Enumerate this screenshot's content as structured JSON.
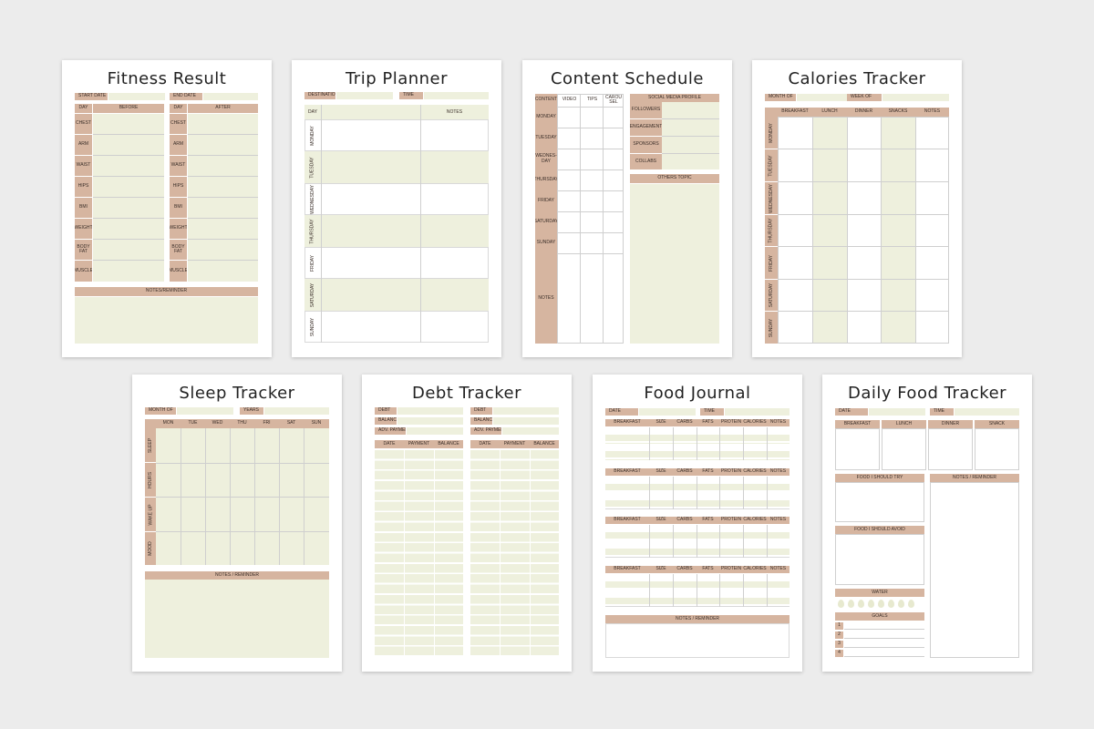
{
  "colors": {
    "background": "#ececec",
    "tan": "#d6b5a0",
    "sage": "#eef0dd",
    "text": "#222222"
  },
  "fitness": {
    "title": "Fitness Result",
    "start_date": "START DATE",
    "end_date": "END DATE",
    "day": "DAY",
    "before": "BEFORE",
    "after": "AFTER",
    "rows": [
      "CHEST",
      "ARM",
      "WAIST",
      "HIPS",
      "BMI",
      "WEIGHT",
      "BODY FAT",
      "MUSCLE"
    ],
    "notes": "NOTES/REMINDER"
  },
  "trip": {
    "title": "Trip Planner",
    "destination": "DESTINATION",
    "time": "TIME",
    "day": "DAY",
    "notes": "NOTES",
    "days": [
      "MONDAY",
      "TUESDAY",
      "WEDNESDAY",
      "THURSDAY",
      "FRIDAY",
      "SATURDAY",
      "SUNDAY"
    ]
  },
  "content": {
    "title": "Content Schedule",
    "cols": [
      "CONTENT",
      "VIDEO",
      "TIPS",
      "CAROU SEL"
    ],
    "days": [
      "MONDAY",
      "TUESDAY",
      "WEDNES- DAY",
      "THURSDAY",
      "FRIDAY",
      "SATURDAY",
      "SUNDAY"
    ],
    "notes": "NOTES",
    "social_header": "SOCIAL MEDIA PROFILE",
    "social": [
      "FOLLOWERS",
      "ENGAGEMENT",
      "SPONSORS",
      "COLLABS"
    ],
    "others": "OTHERS TOPIC"
  },
  "calories": {
    "title": "Calories Tracker",
    "month_of": "MONTH OF",
    "week_of": "WEEK OF",
    "cols": [
      "BREAKFAST",
      "LUNCH",
      "DINNER",
      "SNACKS",
      "NOTES"
    ],
    "days": [
      "MONDAY",
      "TUESDAY",
      "WEDNESDAY",
      "THURSDAY",
      "FRIDAY",
      "SATURDAY",
      "SUNDAY"
    ]
  },
  "sleep": {
    "title": "Sleep Tracker",
    "month_of": "MONTH OF",
    "years": "YEARS",
    "cols": [
      "MON",
      "TUE",
      "WED",
      "THU",
      "FRI",
      "SAT",
      "SUN"
    ],
    "rows": [
      "SLEEP",
      "HOURS",
      "WAKE UP",
      "MOOD"
    ],
    "notes": "NOTES / REMINDER"
  },
  "debt": {
    "title": "Debt Tracker",
    "debt": "DEBT",
    "balance": "BALANCE",
    "adv_payment": "ADV. PAYMENT",
    "cols": [
      "DATE",
      "PAYMENT",
      "BALANCE"
    ]
  },
  "journal": {
    "title": "Food Journal",
    "date": "DATE",
    "time": "TIME",
    "cols": [
      "BREAKFAST",
      "SIZE",
      "CARBS",
      "FATS",
      "PROTEIN",
      "CALORIES",
      "NOTES"
    ],
    "notes": "NOTES / REMINDER"
  },
  "daily": {
    "title": "Daily Food Tracker",
    "date": "DATE",
    "time": "TIME",
    "meals": [
      "BREAKFAST",
      "LUNCH",
      "DINNER",
      "SNACK"
    ],
    "try": "FOOD I SHOULD TRY",
    "avoid": "FOOD I SHOULD AVOID",
    "notes": "NOTES / REMINDER",
    "water": "WATER",
    "goals": "GOALS",
    "goal_nums": [
      "1",
      "2",
      "3",
      "4"
    ]
  }
}
